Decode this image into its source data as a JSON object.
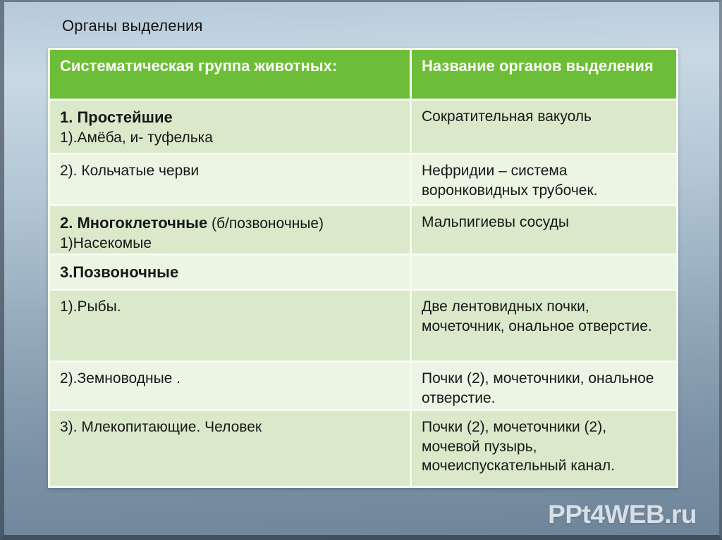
{
  "slide": {
    "title": "Органы выделения",
    "watermark": "PPt4WEB.ru"
  },
  "table": {
    "headers": [
      "Систематическая группа животных:",
      "Название органов выделения"
    ],
    "rows": [
      {
        "cells": [
          [
            [
              {
                "text": "1.  Простейшие",
                "bold": true
              }
            ],
            [
              {
                "text": "1).Амёба, и- туфелька"
              }
            ]
          ],
          [
            [
              {
                "text": "Сократительная вакуоль"
              }
            ]
          ]
        ]
      },
      {
        "cells": [
          [
            [
              {
                "text": "2). Кольчатые черви"
              }
            ]
          ],
          [
            [
              {
                "text": "Нефридии – система воронковидных трубочек."
              }
            ]
          ]
        ]
      },
      {
        "cells": [
          [
            [
              {
                "text": "2. Многоклеточные",
                "bold": true
              },
              {
                "text": " (б/позвоночные)"
              }
            ],
            [
              {
                "text": "1)Насекомые"
              }
            ]
          ],
          [
            [
              {
                "text": "Мальпигиевы сосуды"
              }
            ]
          ]
        ]
      },
      {
        "cells": [
          [
            [
              {
                "text": "3.Позвоночные",
                "bold": true
              }
            ]
          ],
          []
        ]
      },
      {
        "cells": [
          [
            [
              {
                "text": "1).Рыбы."
              }
            ]
          ],
          [
            [
              {
                "text": "Две лентовидных почки, мочеточник,  ональное отверстие."
              }
            ]
          ]
        ]
      },
      {
        "cells": [
          [
            [
              {
                "text": "2).Земноводные ."
              }
            ]
          ],
          [
            [
              {
                "text": "Почки (2), мочеточники, ональное отверстие."
              }
            ]
          ]
        ]
      },
      {
        "cells": [
          [
            [
              {
                "text": "3). Млекопитающие. Человек"
              }
            ]
          ],
          [
            [
              {
                "text": "Почки (2), мочеточники (2), мочевой пузырь, мочеиспускательный канал."
              }
            ]
          ]
        ]
      }
    ]
  },
  "colors": {
    "header_green": "#6cbe38",
    "row_dark_green": "#d9e9ca",
    "row_light_green": "#ecf4e3",
    "cell_border": "#f6faef",
    "background_top": "#c8d8e4",
    "background_bottom": "#6e8499"
  }
}
